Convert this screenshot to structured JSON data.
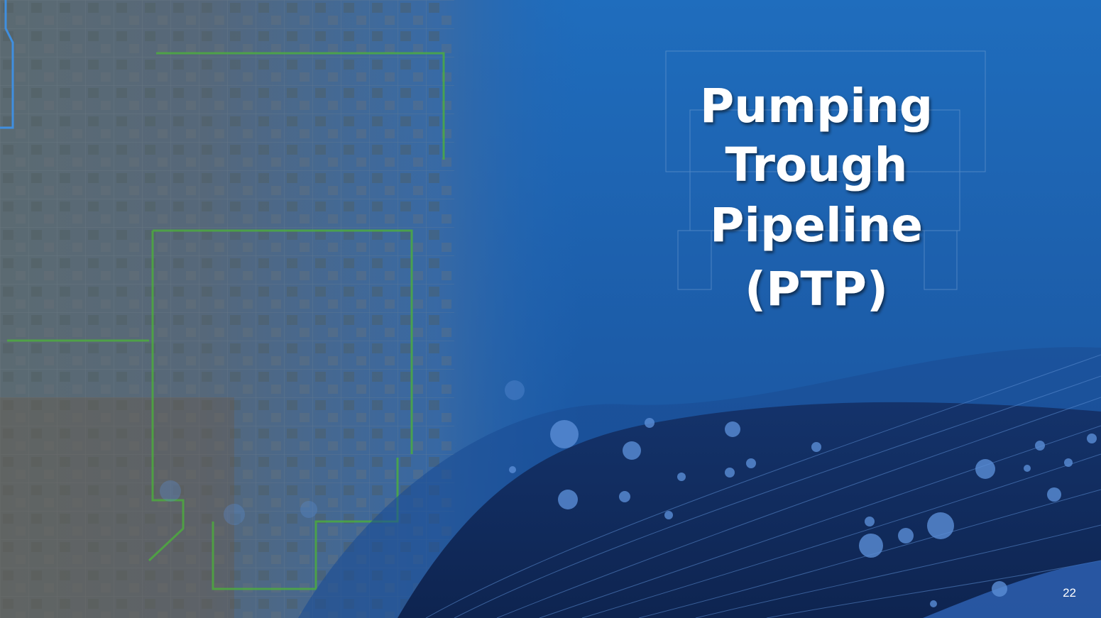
{
  "slide": {
    "title_lines": [
      "Pumping",
      "Trough",
      "Pipeline",
      "(PTP)"
    ],
    "page_number": "22"
  }
}
